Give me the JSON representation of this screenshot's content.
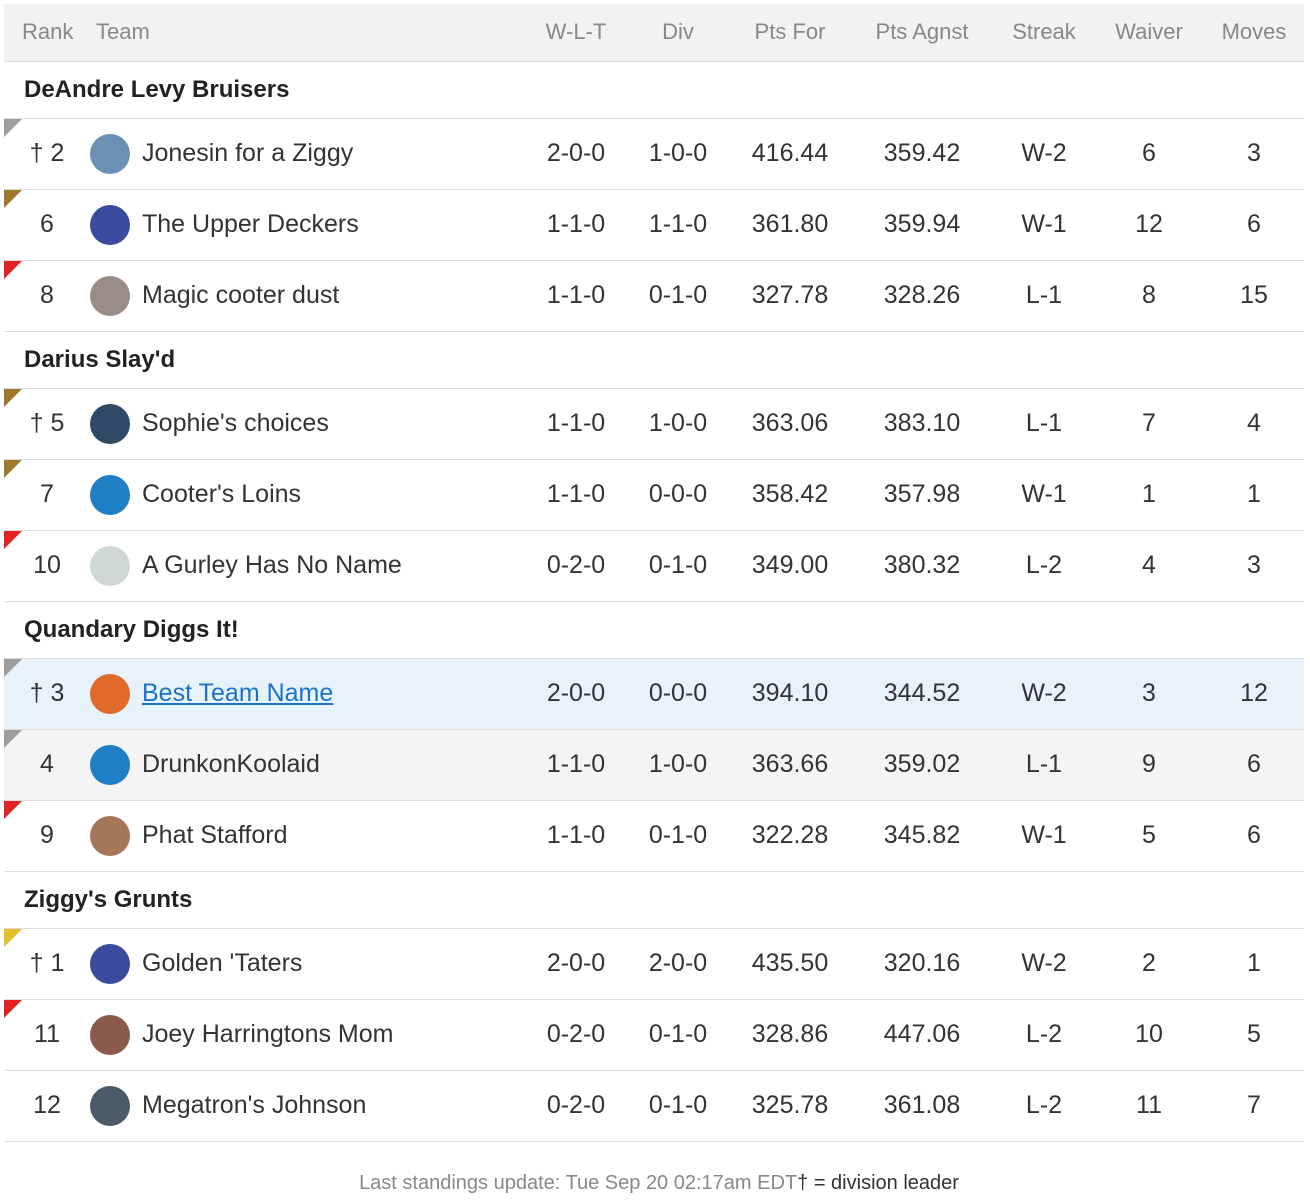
{
  "columns": {
    "rank": "Rank",
    "team": "Team",
    "wlt": "W-L-T",
    "div": "Div",
    "pts_for": "Pts For",
    "pts_agnst": "Pts Agnst",
    "streak": "Streak",
    "waiver": "Waiver",
    "moves": "Moves"
  },
  "divisions": [
    {
      "name": "DeAndre Levy Bruisers",
      "teams": [
        {
          "rank": "† 2",
          "name": "Jonesin for a Ziggy",
          "wlt": "2-0-0",
          "div": "1-0-0",
          "pts_for": "416.44",
          "pts_agnst": "359.42",
          "streak": "W-2",
          "waiver": "6",
          "moves": "3",
          "marker": "#9e9e9e",
          "logo_color": "#6b8fb5",
          "logo": "jersey-icon"
        },
        {
          "rank": "6",
          "name": "The Upper Deckers",
          "wlt": "1-1-0",
          "div": "1-1-0",
          "pts_for": "361.80",
          "pts_agnst": "359.94",
          "streak": "W-1",
          "waiver": "12",
          "moves": "6",
          "marker": "#a07a2c",
          "logo_color": "#3a4a9c",
          "logo": "helmet-icon"
        },
        {
          "rank": "8",
          "name": "Magic cooter dust",
          "wlt": "1-1-0",
          "div": "0-1-0",
          "pts_for": "327.78",
          "pts_agnst": "328.26",
          "streak": "L-1",
          "waiver": "8",
          "moves": "15",
          "marker": "#e02424",
          "logo_color": "#9a8d86",
          "logo": "avatar-photo-icon"
        }
      ]
    },
    {
      "name": "Darius Slay'd",
      "teams": [
        {
          "rank": "† 5",
          "name": "Sophie's choices",
          "wlt": "1-1-0",
          "div": "1-0-0",
          "pts_for": "363.06",
          "pts_agnst": "383.10",
          "streak": "L-1",
          "waiver": "7",
          "moves": "4",
          "marker": "#a07a2c",
          "logo_color": "#2f4a66",
          "logo": "badge-icon"
        },
        {
          "rank": "7",
          "name": "Cooter's Loins",
          "wlt": "1-1-0",
          "div": "0-0-0",
          "pts_for": "358.42",
          "pts_agnst": "357.98",
          "streak": "W-1",
          "waiver": "1",
          "moves": "1",
          "marker": "#a07a2c",
          "logo_color": "#1e7fc4",
          "logo": "lion-icon"
        },
        {
          "rank": "10",
          "name": "A Gurley Has No Name",
          "wlt": "0-2-0",
          "div": "0-1-0",
          "pts_for": "349.00",
          "pts_agnst": "380.32",
          "streak": "L-2",
          "waiver": "4",
          "moves": "3",
          "marker": "#e02424",
          "logo_color": "#cfd8d3",
          "logo": "helmet-icon"
        }
      ]
    },
    {
      "name": "Quandary Diggs It!",
      "teams": [
        {
          "rank": "† 3",
          "name": "Best Team Name",
          "wlt": "2-0-0",
          "div": "0-0-0",
          "pts_for": "394.10",
          "pts_agnst": "344.52",
          "streak": "W-2",
          "waiver": "3",
          "moves": "12",
          "marker": "#9e9e9e",
          "logo_color": "#e06a2a",
          "logo": "helmet-icon",
          "mine": true
        },
        {
          "rank": "4",
          "name": "DrunkonKoolaid",
          "wlt": "1-1-0",
          "div": "1-0-0",
          "pts_for": "363.66",
          "pts_agnst": "359.02",
          "streak": "L-1",
          "waiver": "9",
          "moves": "6",
          "marker": "#9e9e9e",
          "logo_color": "#1e7fc4",
          "logo": "lion-icon",
          "alt": true
        },
        {
          "rank": "9",
          "name": "Phat Stafford",
          "wlt": "1-1-0",
          "div": "0-1-0",
          "pts_for": "322.28",
          "pts_agnst": "345.82",
          "streak": "W-1",
          "waiver": "5",
          "moves": "6",
          "marker": "#e02424",
          "logo_color": "#a5765a",
          "logo": "avatar-photo-icon"
        }
      ]
    },
    {
      "name": "Ziggy's Grunts",
      "teams": [
        {
          "rank": "† 1",
          "name": "Golden 'Taters",
          "wlt": "2-0-0",
          "div": "2-0-0",
          "pts_for": "435.50",
          "pts_agnst": "320.16",
          "streak": "W-2",
          "waiver": "2",
          "moves": "1",
          "marker": "#e3c02a",
          "logo_color": "#3a4a9c",
          "logo": "helmet-icon"
        },
        {
          "rank": "11",
          "name": "Joey Harringtons Mom",
          "wlt": "0-2-0",
          "div": "0-1-0",
          "pts_for": "328.86",
          "pts_agnst": "447.06",
          "streak": "L-2",
          "waiver": "10",
          "moves": "5",
          "marker": "#e02424",
          "logo_color": "#8a5a4a",
          "logo": "avatar-photo-icon"
        },
        {
          "rank": "12",
          "name": "Megatron's Johnson",
          "wlt": "0-2-0",
          "div": "0-1-0",
          "pts_for": "325.78",
          "pts_agnst": "361.08",
          "streak": "L-2",
          "waiver": "11",
          "moves": "7",
          "marker": "",
          "logo_color": "#4a5a6a",
          "logo": "avatar-photo-icon"
        }
      ]
    }
  ],
  "footer": {
    "update": "Last standings update: Tue Sep 20 02:17am EDT",
    "legend": "† = division leader"
  }
}
